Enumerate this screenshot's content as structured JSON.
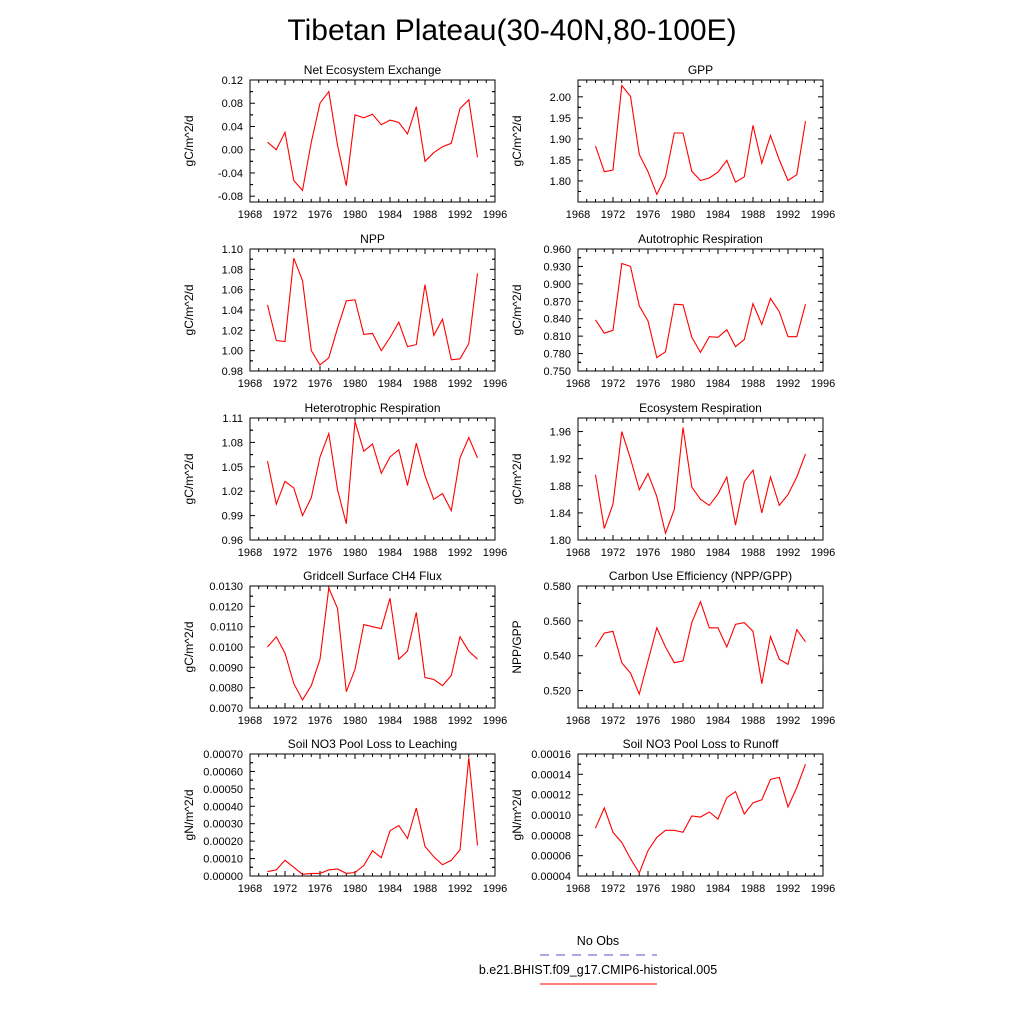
{
  "figure": {
    "title": "Tibetan Plateau(30-40N,80-100E)",
    "legend": {
      "entries": [
        {
          "label": "No Obs",
          "color": "#5555cc",
          "dash": "dashed"
        },
        {
          "label": "b.e21.BHIST.f09_g17.CMIP6-historical.005",
          "color": "#ff0000",
          "dash": "solid"
        }
      ]
    }
  },
  "chart_data": [
    {
      "type": "line",
      "title": "Net Ecosystem Exchange",
      "ylabel": "gC/m^2/d",
      "xlim": [
        1968,
        1996
      ],
      "ylim": [
        -0.09,
        0.12
      ],
      "xticks": [
        "1968",
        "1972",
        "1976",
        "1980",
        "1984",
        "1988",
        "1992",
        "1996"
      ],
      "yticks": [
        "-0.08",
        "-0.04",
        "0.00",
        "0.04",
        "0.08",
        "0.12"
      ],
      "x": [
        1970,
        1971,
        1972,
        1973,
        1974,
        1975,
        1976,
        1977,
        1978,
        1979,
        1980,
        1981,
        1982,
        1983,
        1984,
        1985,
        1986,
        1987,
        1988,
        1989,
        1990,
        1991,
        1992,
        1993,
        1994
      ],
      "series": [
        {
          "color": "#ff0000",
          "values": [
            0.013,
            0.0,
            0.03,
            -0.053,
            -0.07,
            0.013,
            0.08,
            0.1,
            0.008,
            -0.062,
            0.06,
            0.055,
            0.061,
            0.043,
            0.051,
            0.047,
            0.027,
            0.074,
            -0.02,
            -0.005,
            0.005,
            0.011,
            0.071,
            0.086,
            -0.013
          ]
        }
      ]
    },
    {
      "type": "line",
      "title": "GPP",
      "ylabel": "gC/m^2/d",
      "xlim": [
        1968,
        1996
      ],
      "ylim": [
        1.75,
        2.04
      ],
      "xticks": [
        "1968",
        "1972",
        "1976",
        "1980",
        "1984",
        "1988",
        "1992",
        "1996"
      ],
      "yticks": [
        "1.80",
        "1.85",
        "1.90",
        "1.95",
        "2.00"
      ],
      "x": [
        1970,
        1971,
        1972,
        1973,
        1974,
        1975,
        1976,
        1977,
        1978,
        1979,
        1980,
        1981,
        1982,
        1983,
        1984,
        1985,
        1986,
        1987,
        1988,
        1989,
        1990,
        1991,
        1992,
        1993,
        1994
      ],
      "series": [
        {
          "color": "#ff0000",
          "values": [
            1.883,
            1.822,
            1.826,
            2.027,
            2.001,
            1.863,
            1.822,
            1.768,
            1.81,
            1.914,
            1.914,
            1.823,
            1.801,
            1.807,
            1.821,
            1.849,
            1.797,
            1.81,
            1.932,
            1.842,
            1.908,
            1.85,
            1.801,
            1.815,
            1.942
          ]
        }
      ]
    },
    {
      "type": "line",
      "title": "NPP",
      "ylabel": "gC/m^2/d",
      "xlim": [
        1968,
        1996
      ],
      "ylim": [
        0.98,
        1.1
      ],
      "xticks": [
        "1968",
        "1972",
        "1976",
        "1980",
        "1984",
        "1988",
        "1992",
        "1996"
      ],
      "yticks": [
        "0.98",
        "1.00",
        "1.02",
        "1.04",
        "1.06",
        "1.08",
        "1.10"
      ],
      "x": [
        1970,
        1971,
        1972,
        1973,
        1974,
        1975,
        1976,
        1977,
        1978,
        1979,
        1980,
        1981,
        1982,
        1983,
        1984,
        1985,
        1986,
        1987,
        1988,
        1989,
        1990,
        1991,
        1992,
        1993,
        1994
      ],
      "series": [
        {
          "color": "#ff0000",
          "values": [
            1.045,
            1.01,
            1.009,
            1.091,
            1.069,
            1.0,
            0.986,
            0.993,
            1.022,
            1.049,
            1.05,
            1.016,
            1.017,
            1.0,
            1.013,
            1.028,
            1.004,
            1.006,
            1.065,
            1.015,
            1.031,
            0.991,
            0.992,
            1.007,
            1.076
          ]
        }
      ]
    },
    {
      "type": "line",
      "title": "Autotrophic Respiration",
      "ylabel": "gC/m^2/d",
      "xlim": [
        1968,
        1996
      ],
      "ylim": [
        0.75,
        0.96
      ],
      "xticks": [
        "1968",
        "1972",
        "1976",
        "1980",
        "1984",
        "1988",
        "1992",
        "1996"
      ],
      "yticks": [
        "0.750",
        "0.780",
        "0.810",
        "0.840",
        "0.870",
        "0.900",
        "0.930",
        "0.960"
      ],
      "x": [
        1970,
        1971,
        1972,
        1973,
        1974,
        1975,
        1976,
        1977,
        1978,
        1979,
        1980,
        1981,
        1982,
        1983,
        1984,
        1985,
        1986,
        1987,
        1988,
        1989,
        1990,
        1991,
        1992,
        1993,
        1994
      ],
      "series": [
        {
          "color": "#ff0000",
          "values": [
            0.838,
            0.815,
            0.82,
            0.935,
            0.93,
            0.862,
            0.836,
            0.773,
            0.783,
            0.865,
            0.864,
            0.808,
            0.782,
            0.809,
            0.808,
            0.821,
            0.792,
            0.804,
            0.866,
            0.83,
            0.875,
            0.852,
            0.809,
            0.809,
            0.865
          ]
        }
      ]
    },
    {
      "type": "line",
      "title": "Heterotrophic Respiration",
      "ylabel": "gC/m^2/d",
      "xlim": [
        1968,
        1996
      ],
      "ylim": [
        0.96,
        1.11
      ],
      "xticks": [
        "1968",
        "1972",
        "1976",
        "1980",
        "1984",
        "1988",
        "1992",
        "1996"
      ],
      "yticks": [
        "0.96",
        "0.99",
        "1.02",
        "1.05",
        "1.08",
        "1.11"
      ],
      "x": [
        1970,
        1971,
        1972,
        1973,
        1974,
        1975,
        1976,
        1977,
        1978,
        1979,
        1980,
        1981,
        1982,
        1983,
        1984,
        1985,
        1986,
        1987,
        1988,
        1989,
        1990,
        1991,
        1992,
        1993,
        1994
      ],
      "series": [
        {
          "color": "#ff0000",
          "values": [
            1.057,
            1.004,
            1.032,
            1.024,
            0.99,
            1.012,
            1.062,
            1.091,
            1.022,
            0.98,
            1.106,
            1.069,
            1.078,
            1.042,
            1.062,
            1.071,
            1.027,
            1.079,
            1.039,
            1.01,
            1.017,
            0.996,
            1.061,
            1.086,
            1.061
          ]
        }
      ]
    },
    {
      "type": "line",
      "title": "Ecosystem Respiration",
      "ylabel": "gC/m^2/d",
      "xlim": [
        1968,
        1996
      ],
      "ylim": [
        1.8,
        1.98
      ],
      "xticks": [
        "1968",
        "1972",
        "1976",
        "1980",
        "1984",
        "1988",
        "1992",
        "1996"
      ],
      "yticks": [
        "1.80",
        "1.84",
        "1.88",
        "1.92",
        "1.96"
      ],
      "x": [
        1970,
        1971,
        1972,
        1973,
        1974,
        1975,
        1976,
        1977,
        1978,
        1979,
        1980,
        1981,
        1982,
        1983,
        1984,
        1985,
        1986,
        1987,
        1988,
        1989,
        1990,
        1991,
        1992,
        1993,
        1994
      ],
      "series": [
        {
          "color": "#ff0000",
          "values": [
            1.896,
            1.817,
            1.853,
            1.96,
            1.92,
            1.874,
            1.898,
            1.864,
            1.81,
            1.845,
            1.966,
            1.878,
            1.86,
            1.851,
            1.868,
            1.893,
            1.822,
            1.886,
            1.903,
            1.84,
            1.893,
            1.851,
            1.867,
            1.893,
            1.927
          ]
        }
      ]
    },
    {
      "type": "line",
      "title": "Gridcell Surface CH4 Flux",
      "ylabel": "gC/m^2/d",
      "xlim": [
        1968,
        1996
      ],
      "ylim": [
        0.007,
        0.013
      ],
      "xticks": [
        "1968",
        "1972",
        "1976",
        "1980",
        "1984",
        "1988",
        "1992",
        "1996"
      ],
      "yticks": [
        "0.0070",
        "0.0080",
        "0.0090",
        "0.0100",
        "0.0110",
        "0.0120",
        "0.0130"
      ],
      "x": [
        1970,
        1971,
        1972,
        1973,
        1974,
        1975,
        1976,
        1977,
        1978,
        1979,
        1980,
        1981,
        1982,
        1983,
        1984,
        1985,
        1986,
        1987,
        1988,
        1989,
        1990,
        1991,
        1992,
        1993,
        1994
      ],
      "series": [
        {
          "color": "#ff0000",
          "values": [
            0.01,
            0.0105,
            0.0097,
            0.0082,
            0.0074,
            0.0081,
            0.0094,
            0.0129,
            0.0119,
            0.0078,
            0.0089,
            0.0111,
            0.011,
            0.0109,
            0.0124,
            0.0094,
            0.0098,
            0.0117,
            0.0085,
            0.0084,
            0.0081,
            0.0086,
            0.0105,
            0.0098,
            0.0094
          ]
        }
      ]
    },
    {
      "type": "line",
      "title": "Carbon Use Efficiency (NPP/GPP)",
      "ylabel": "NPP/GPP",
      "xlim": [
        1968,
        1996
      ],
      "ylim": [
        0.51,
        0.58
      ],
      "xticks": [
        "1968",
        "1972",
        "1976",
        "1980",
        "1984",
        "1988",
        "1992",
        "1996"
      ],
      "yticks": [
        "0.520",
        "0.540",
        "0.560",
        "0.580"
      ],
      "x": [
        1970,
        1971,
        1972,
        1973,
        1974,
        1975,
        1976,
        1977,
        1978,
        1979,
        1980,
        1981,
        1982,
        1983,
        1984,
        1985,
        1986,
        1987,
        1988,
        1989,
        1990,
        1991,
        1992,
        1993,
        1994
      ],
      "series": [
        {
          "color": "#ff0000",
          "values": [
            0.545,
            0.553,
            0.554,
            0.536,
            0.53,
            0.518,
            0.537,
            0.556,
            0.545,
            0.536,
            0.537,
            0.559,
            0.571,
            0.556,
            0.556,
            0.545,
            0.558,
            0.559,
            0.554,
            0.524,
            0.551,
            0.538,
            0.535,
            0.555,
            0.548
          ]
        }
      ]
    },
    {
      "type": "line",
      "title": "Soil NO3 Pool Loss to Leaching",
      "ylabel": "gN/m^2/d",
      "xlim": [
        1968,
        1996
      ],
      "ylim": [
        0.0,
        0.0007
      ],
      "xticks": [
        "1968",
        "1972",
        "1976",
        "1980",
        "1984",
        "1988",
        "1992",
        "1996"
      ],
      "yticks": [
        "0.00000",
        "0.00010",
        "0.00020",
        "0.00030",
        "0.00040",
        "0.00050",
        "0.00060",
        "0.00070"
      ],
      "x": [
        1970,
        1971,
        1972,
        1973,
        1974,
        1975,
        1976,
        1977,
        1978,
        1979,
        1980,
        1981,
        1982,
        1983,
        1984,
        1985,
        1986,
        1987,
        1988,
        1989,
        1990,
        1991,
        1992,
        1993,
        1994
      ],
      "series": [
        {
          "color": "#ff0000",
          "values": [
            2.5e-05,
            3.5e-05,
            9e-05,
            5e-05,
            1e-05,
            1.5e-05,
            1.5e-05,
            3.5e-05,
            4e-05,
            1.5e-05,
            2e-05,
            6e-05,
            0.000145,
            0.000105,
            0.00026,
            0.00029,
            0.000215,
            0.00039,
            0.00017,
            0.00011,
            6.5e-05,
            9e-05,
            0.00015,
            0.00068,
            0.000175
          ]
        }
      ]
    },
    {
      "type": "line",
      "title": "Soil NO3 Pool Loss to Runoff",
      "ylabel": "gN/m^2/d",
      "xlim": [
        1968,
        1996
      ],
      "ylim": [
        4e-05,
        0.00016
      ],
      "xticks": [
        "1968",
        "1972",
        "1976",
        "1980",
        "1984",
        "1988",
        "1992",
        "1996"
      ],
      "yticks": [
        "0.00004",
        "0.00006",
        "0.00008",
        "0.00010",
        "0.00012",
        "0.00014",
        "0.00016"
      ],
      "x": [
        1970,
        1971,
        1972,
        1973,
        1974,
        1975,
        1976,
        1977,
        1978,
        1979,
        1980,
        1981,
        1982,
        1983,
        1984,
        1985,
        1986,
        1987,
        1988,
        1989,
        1990,
        1991,
        1992,
        1993,
        1994
      ],
      "series": [
        {
          "color": "#ff0000",
          "values": [
            8.7e-05,
            0.000107,
            8.3e-05,
            7.3e-05,
            5.7e-05,
            4.3e-05,
            6.5e-05,
            7.8e-05,
            8.5e-05,
            8.5e-05,
            8.3e-05,
            9.9e-05,
            9.8e-05,
            0.000103,
            9.6e-05,
            0.000117,
            0.000123,
            0.000101,
            0.000112,
            0.000115,
            0.000135,
            0.000137,
            0.000108,
            0.000127,
            0.00015
          ]
        }
      ]
    }
  ]
}
